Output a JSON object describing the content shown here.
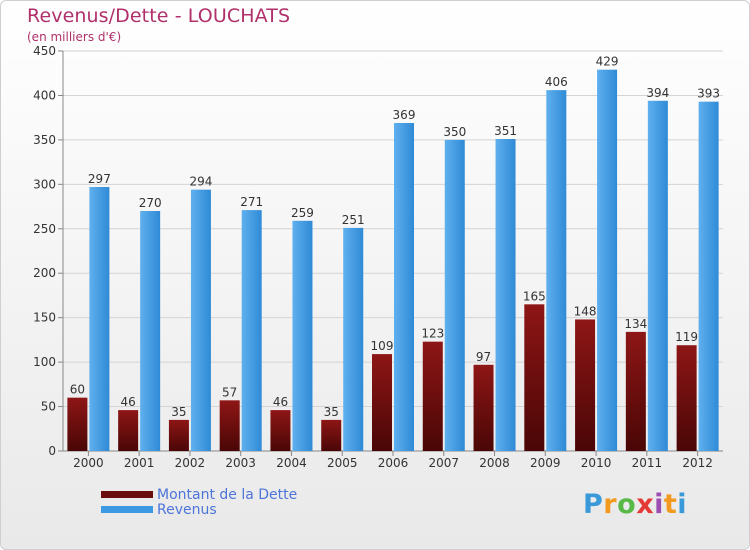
{
  "header": {
    "title": "Revenus/Dette - LOUCHATS",
    "subtitle": "(en milliers d'€)"
  },
  "legend": {
    "items": [
      {
        "label": "Montant de la Dette",
        "color": "#6b0d0d"
      },
      {
        "label": "Revenus",
        "color": "#3d9ae2"
      }
    ]
  },
  "logo": {
    "text": "Proxiti",
    "letter_colors": [
      "#3a9ad9",
      "#f29a1f",
      "#58b947",
      "#e53935",
      "#9c4fb3",
      "#f29a1f",
      "#3a9ad9"
    ]
  },
  "chart_data": {
    "type": "bar",
    "title": "Revenus/Dette - LOUCHATS",
    "subtitle": "(en milliers d'€)",
    "categories": [
      "2000",
      "2001",
      "2002",
      "2003",
      "2004",
      "2005",
      "2006",
      "2007",
      "2008",
      "2009",
      "2010",
      "2011",
      "2012"
    ],
    "series": [
      {
        "name": "Montant de la Dette",
        "color": "#6b0d0d",
        "values": [
          60,
          46,
          35,
          57,
          46,
          35,
          109,
          123,
          97,
          165,
          148,
          134,
          119
        ]
      },
      {
        "name": "Revenus",
        "color": "#3d9ae2",
        "values": [
          297,
          270,
          294,
          271,
          259,
          251,
          369,
          350,
          351,
          406,
          429,
          394,
          393
        ]
      }
    ],
    "ylim": [
      0,
      450
    ],
    "yticks": [
      0,
      50,
      100,
      150,
      200,
      250,
      300,
      350,
      400,
      450
    ],
    "grid": true,
    "legend_position": "bottom-left"
  }
}
